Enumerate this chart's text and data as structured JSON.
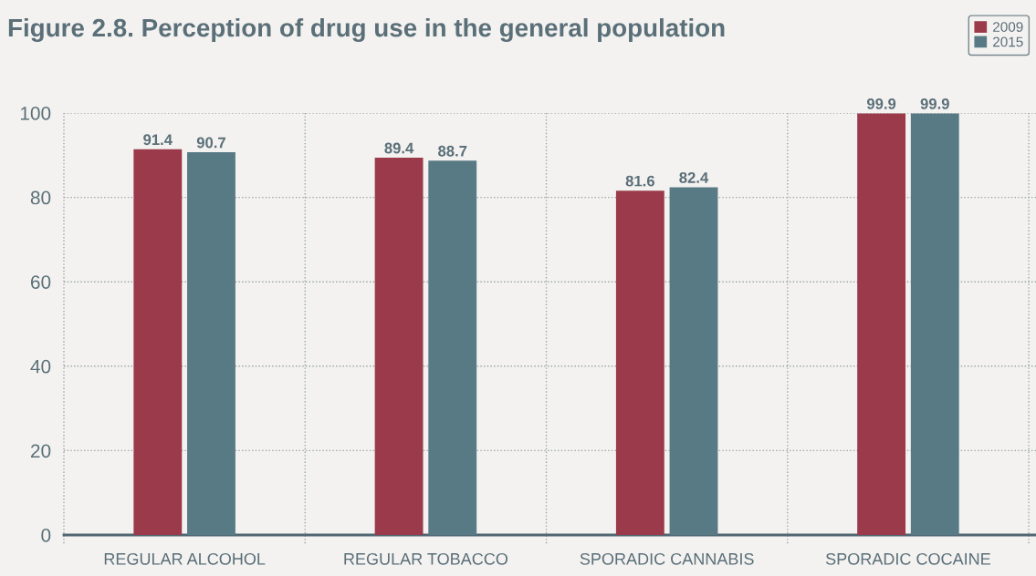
{
  "chart_data": {
    "type": "bar",
    "title": "Figure 2.8. Perception of drug use in the general population",
    "categories": [
      "REGULAR ALCOHOL",
      "REGULAR TOBACCO",
      "SPORADIC CANNABIS",
      "SPORADIC COCAINE"
    ],
    "series": [
      {
        "name": "2009",
        "color": "#9b3a4a",
        "values": [
          91.4,
          89.4,
          81.6,
          99.9
        ]
      },
      {
        "name": "2015",
        "color": "#587a84",
        "values": [
          90.7,
          88.7,
          82.4,
          99.9
        ]
      }
    ],
    "ylim": [
      0,
      100
    ],
    "yticks": [
      0,
      20,
      40,
      60,
      80,
      100
    ],
    "grid": true,
    "legend": "top right",
    "data_labels": true
  }
}
